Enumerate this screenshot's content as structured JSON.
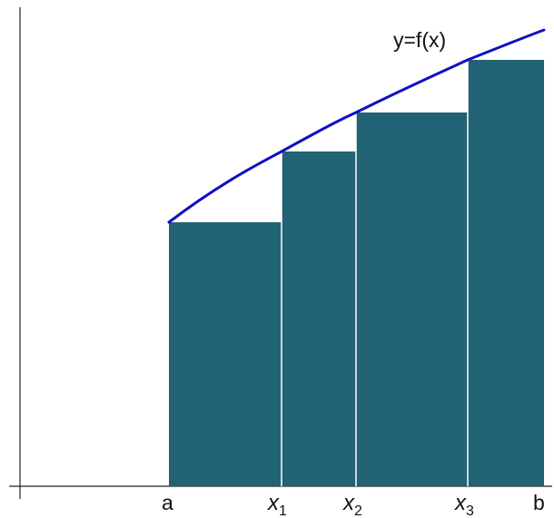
{
  "diagram": {
    "curve_label": "y=f(x)",
    "x_labels": [
      {
        "id": "a",
        "base": "a",
        "sub": ""
      },
      {
        "id": "x1",
        "base": "x",
        "sub": "1"
      },
      {
        "id": "x2",
        "base": "x",
        "sub": "2"
      },
      {
        "id": "x3",
        "base": "x",
        "sub": "3"
      },
      {
        "id": "b",
        "base": "b",
        "sub": ""
      }
    ],
    "colors": {
      "rectangle_fill": "#216375",
      "rectangle_divider": "#ffffff",
      "curve": "#1010c0",
      "axes": "#222222"
    }
  }
}
